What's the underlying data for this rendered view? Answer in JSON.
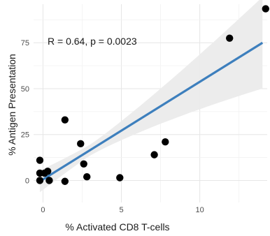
{
  "chart_data": {
    "type": "scatter",
    "xlabel": "% Activated CD8 T-cells",
    "ylabel": "% Antigen Presentation",
    "annotation": "R = 0.64, p = 0.0023",
    "xlim": [
      -0.6,
      14.3
    ],
    "ylim": [
      -12,
      96
    ],
    "xticks": [
      0,
      5,
      10
    ],
    "yticks": [
      0,
      25,
      50,
      75
    ],
    "grid": true,
    "points": [
      {
        "x": -0.2,
        "y": 11
      },
      {
        "x": -0.2,
        "y": 4
      },
      {
        "x": -0.2,
        "y": 0
      },
      {
        "x": 0.1,
        "y": 4
      },
      {
        "x": 0.3,
        "y": 5
      },
      {
        "x": 0.4,
        "y": 0
      },
      {
        "x": 1.4,
        "y": 33
      },
      {
        "x": 1.4,
        "y": -0.5
      },
      {
        "x": 2.4,
        "y": 20
      },
      {
        "x": 2.6,
        "y": 9
      },
      {
        "x": 2.8,
        "y": 2
      },
      {
        "x": 4.9,
        "y": 1.5
      },
      {
        "x": 7.1,
        "y": 14
      },
      {
        "x": 7.8,
        "y": 21
      },
      {
        "x": 11.9,
        "y": 77.5
      },
      {
        "x": 14.2,
        "y": 93.5
      }
    ],
    "fit": {
      "x0": -0.2,
      "y0": -0.5,
      "x1": 14.0,
      "y1": 75
    },
    "colors": {
      "points": "#000000",
      "fit": "#3d7fbd",
      "band": "#ebebeb"
    }
  }
}
